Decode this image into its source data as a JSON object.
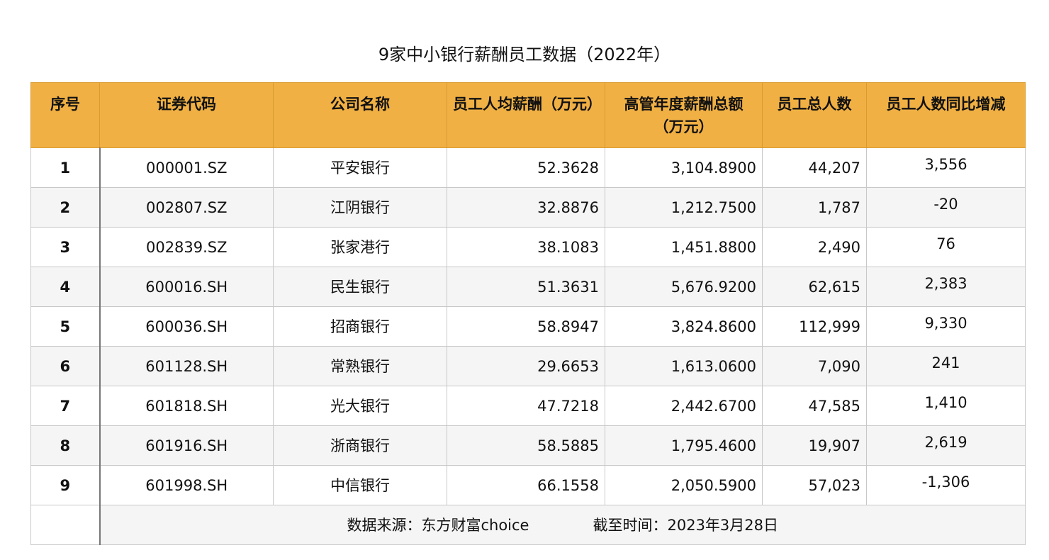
{
  "title": "9家中小银行薪酬员工数据（2022年）",
  "table": {
    "headers": [
      "序号",
      "证券代码",
      "公司名称",
      "员工人均薪酬（万元）",
      "高管年度薪酬总额（万元）",
      "员工总人数",
      "员工人数同比增减"
    ],
    "rows": [
      {
        "idx": "1",
        "code": "000001.SZ",
        "name": "平安银行",
        "avg_pay": "52.3628",
        "exec_pay": "3,104.8900",
        "staff": "44,207",
        "change": "3,556"
      },
      {
        "idx": "2",
        "code": "002807.SZ",
        "name": "江阴银行",
        "avg_pay": "32.8876",
        "exec_pay": "1,212.7500",
        "staff": "1,787",
        "change": "-20"
      },
      {
        "idx": "3",
        "code": "002839.SZ",
        "name": "张家港行",
        "avg_pay": "38.1083",
        "exec_pay": "1,451.8800",
        "staff": "2,490",
        "change": "76"
      },
      {
        "idx": "4",
        "code": "600016.SH",
        "name": "民生银行",
        "avg_pay": "51.3631",
        "exec_pay": "5,676.9200",
        "staff": "62,615",
        "change": "2,383"
      },
      {
        "idx": "5",
        "code": "600036.SH",
        "name": "招商银行",
        "avg_pay": "58.8947",
        "exec_pay": "3,824.8600",
        "staff": "112,999",
        "change": "9,330"
      },
      {
        "idx": "6",
        "code": "601128.SH",
        "name": "常熟银行",
        "avg_pay": "29.6653",
        "exec_pay": "1,613.0600",
        "staff": "7,090",
        "change": "241"
      },
      {
        "idx": "7",
        "code": "601818.SH",
        "name": "光大银行",
        "avg_pay": "47.7218",
        "exec_pay": "2,442.6700",
        "staff": "47,585",
        "change": "1,410"
      },
      {
        "idx": "8",
        "code": "601916.SH",
        "name": "浙商银行",
        "avg_pay": "58.5885",
        "exec_pay": "1,795.4600",
        "staff": "19,907",
        "change": "2,619"
      },
      {
        "idx": "9",
        "code": "601998.SH",
        "name": "中信银行",
        "avg_pay": "66.1558",
        "exec_pay": "2,050.5900",
        "staff": "57,023",
        "change": "-1,306"
      }
    ]
  },
  "footer": {
    "source": "数据来源：东方财富choice",
    "date": "截至时间：2023年3月28日"
  },
  "colors": {
    "header_bg": "#f0b044",
    "stripe_bg": "#f5f5f5"
  }
}
